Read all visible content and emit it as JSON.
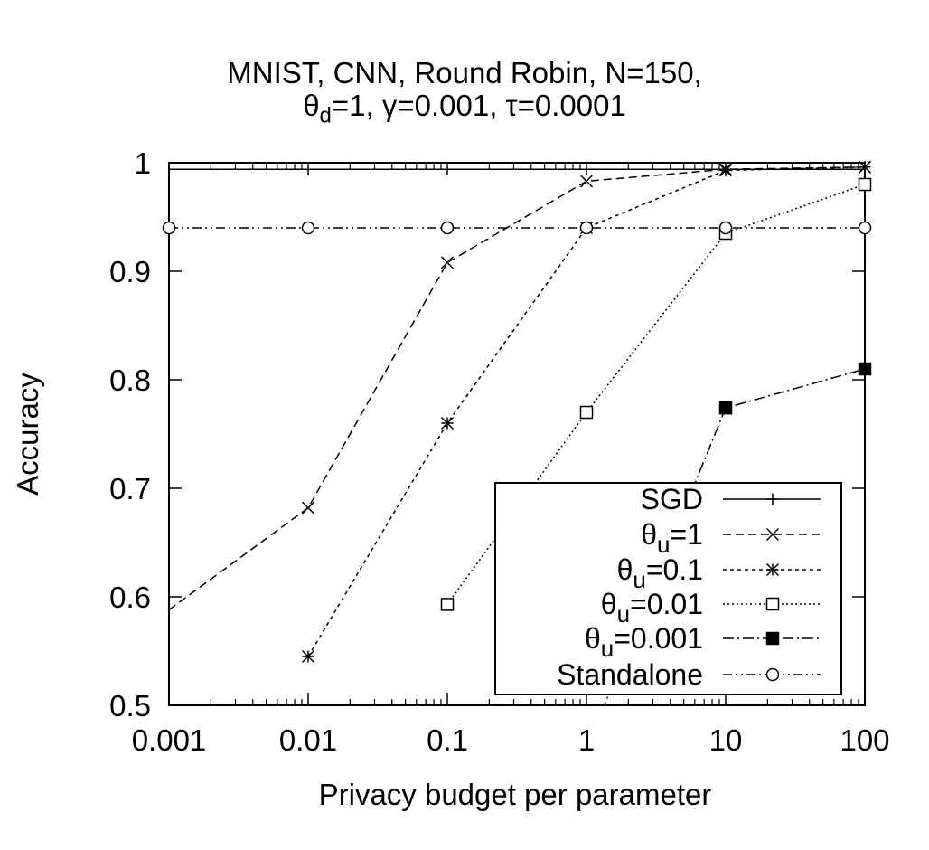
{
  "chart_data": {
    "type": "line",
    "title_line1": "MNIST, CNN, Round Robin, N=150,",
    "title_line2": "θd=1, γ=0.001, τ=0.0001",
    "xlabel": "Privacy budget per parameter",
    "ylabel": "Accuracy",
    "x_scale": "log",
    "xlim": [
      0.001,
      100
    ],
    "ylim": [
      0.5,
      1
    ],
    "x_ticks": [
      {
        "value": 0.001,
        "label": "0.001"
      },
      {
        "value": 0.01,
        "label": "0.01"
      },
      {
        "value": 0.1,
        "label": "0.1"
      },
      {
        "value": 1,
        "label": "1"
      },
      {
        "value": 10,
        "label": "10"
      },
      {
        "value": 100,
        "label": "100"
      }
    ],
    "y_ticks": [
      {
        "value": 0.5,
        "label": "0.5"
      },
      {
        "value": 0.6,
        "label": "0.6"
      },
      {
        "value": 0.7,
        "label": "0.7"
      },
      {
        "value": 0.8,
        "label": "0.8"
      },
      {
        "value": 0.9,
        "label": "0.9"
      },
      {
        "value": 1,
        "label": "1"
      }
    ],
    "grid": false,
    "legend_position": "bottom-right",
    "series": [
      {
        "name": "SGD",
        "marker": "plus",
        "dash": "",
        "x": [
          0.001,
          100
        ],
        "y": [
          0.994,
          0.994
        ],
        "show_markers": false
      },
      {
        "name": "θu=1",
        "marker": "cross",
        "dash": "9,5",
        "x": [
          0.001,
          0.01,
          0.1,
          1,
          10,
          100
        ],
        "y": [
          0.588,
          0.682,
          0.908,
          0.983,
          0.994,
          0.996
        ],
        "first_marker_hidden": true
      },
      {
        "name": "θu=0.1",
        "marker": "star",
        "dash": "4,4",
        "x": [
          0.01,
          0.1,
          1,
          10,
          100
        ],
        "y": [
          0.545,
          0.76,
          0.94,
          0.993,
          0.996
        ]
      },
      {
        "name": "θu=0.01",
        "marker": "square-open",
        "dash": "2,3",
        "x": [
          0.1,
          1,
          10,
          100
        ],
        "y": [
          0.593,
          0.77,
          0.935,
          0.98
        ]
      },
      {
        "name": "θu=0.001",
        "marker": "square-filled",
        "dash": "12,4,2,4",
        "x": [
          1,
          10,
          100
        ],
        "y": [
          0.46,
          0.774,
          0.81
        ]
      },
      {
        "name": "Standalone",
        "marker": "circle-open",
        "dash": "10,4,2,4,2,4",
        "x": [
          0.001,
          0.01,
          0.1,
          1,
          10,
          100
        ],
        "y": [
          0.94,
          0.94,
          0.94,
          0.94,
          0.94,
          0.94
        ]
      }
    ],
    "legend": [
      {
        "label": "SGD",
        "sub": ""
      },
      {
        "label_pre": "θ",
        "sub": "u",
        "label_post": "=1"
      },
      {
        "label_pre": "θ",
        "sub": "u",
        "label_post": "=0.1"
      },
      {
        "label_pre": "θ",
        "sub": "u",
        "label_post": "=0.01"
      },
      {
        "label_pre": "θ",
        "sub": "u",
        "label_post": "=0.001"
      },
      {
        "label": "Standalone",
        "sub": ""
      }
    ]
  }
}
